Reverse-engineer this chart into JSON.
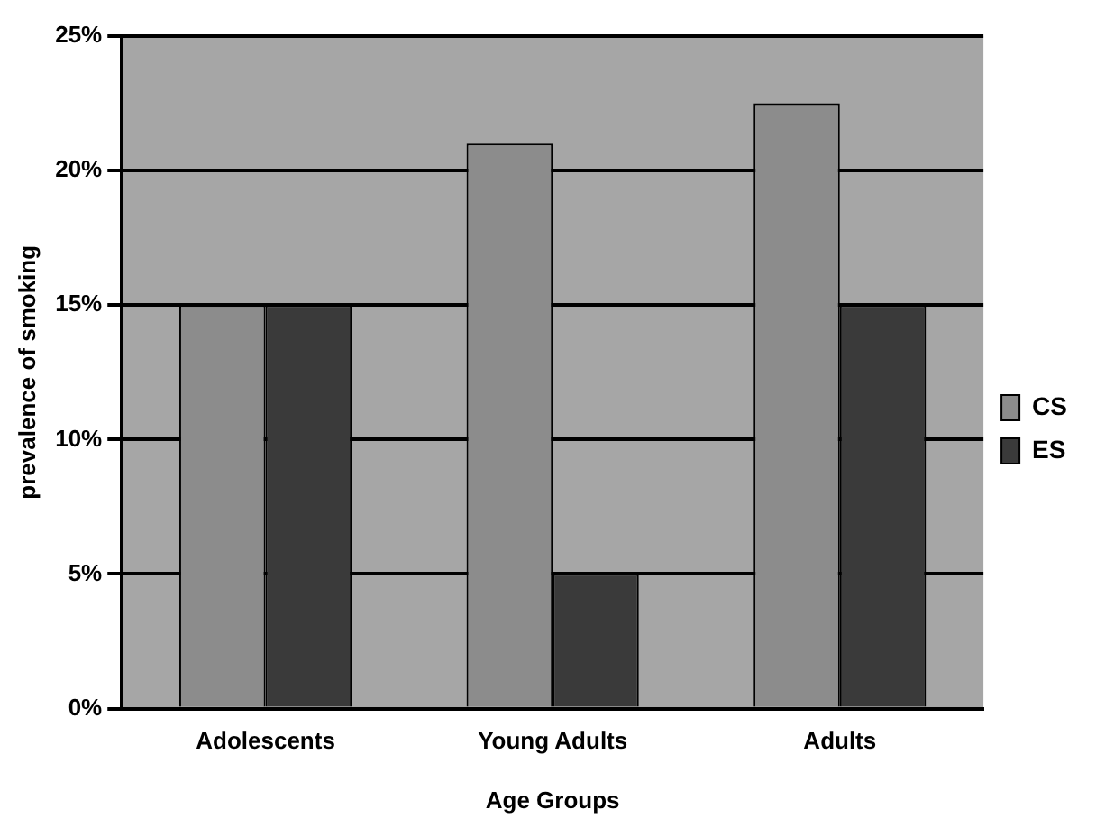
{
  "chart_data": {
    "type": "bar",
    "xlabel": "Age Groups",
    "ylabel": "prevalence of smoking",
    "categories": [
      "Adolescents",
      "Young Adults",
      "Adults"
    ],
    "series": [
      {
        "name": "CS",
        "color": "#8c8c8c",
        "values": [
          15,
          21,
          22.5
        ]
      },
      {
        "name": "ES",
        "color": "#3a3a3a",
        "values": [
          15,
          5,
          15
        ]
      }
    ],
    "ylim": [
      0,
      25
    ],
    "yticks": [
      {
        "value": 0,
        "label": "0%"
      },
      {
        "value": 5,
        "label": "5%"
      },
      {
        "value": 10,
        "label": "10%"
      },
      {
        "value": 15,
        "label": "15%"
      },
      {
        "value": 20,
        "label": "20%"
      },
      {
        "value": 25,
        "label": "25%"
      }
    ],
    "grid": "y",
    "legend": "right"
  }
}
